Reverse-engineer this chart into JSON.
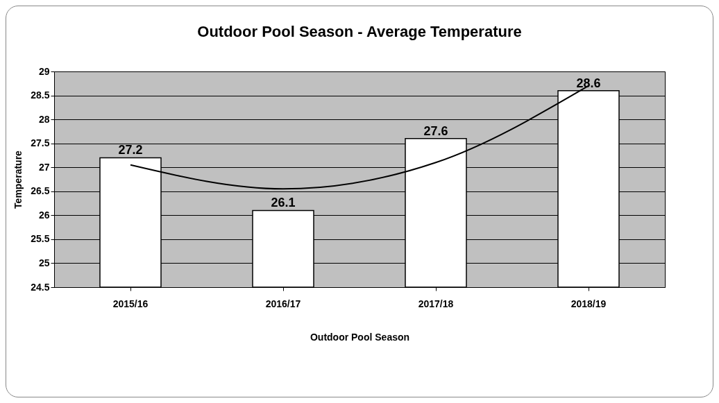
{
  "chart_data": {
    "type": "bar",
    "title": "Outdoor Pool Season - Average Temperature",
    "xlabel": "Outdoor Pool Season",
    "ylabel": "Temperature",
    "categories": [
      "2015/16",
      "2016/17",
      "2017/18",
      "2018/19"
    ],
    "series": [
      {
        "color": "#ffffff",
        "values": [
          27.2,
          26.1,
          27.6,
          28.6
        ],
        "value_labels": [
          "27.2",
          "26.1",
          "27.6",
          "28.6"
        ]
      },
      {
        "type": "line",
        "color": "#000000",
        "x": [
          "2015/16",
          "2016/17",
          "2017/18",
          "2018/19"
        ],
        "values": [
          27.05,
          26.55,
          27.1,
          28.7
        ]
      }
    ],
    "ylim": [
      24.5,
      29
    ],
    "yticks": [
      24.5,
      25,
      25.5,
      26,
      26.5,
      27,
      27.5,
      28,
      28.5,
      29
    ],
    "grid": "y"
  }
}
